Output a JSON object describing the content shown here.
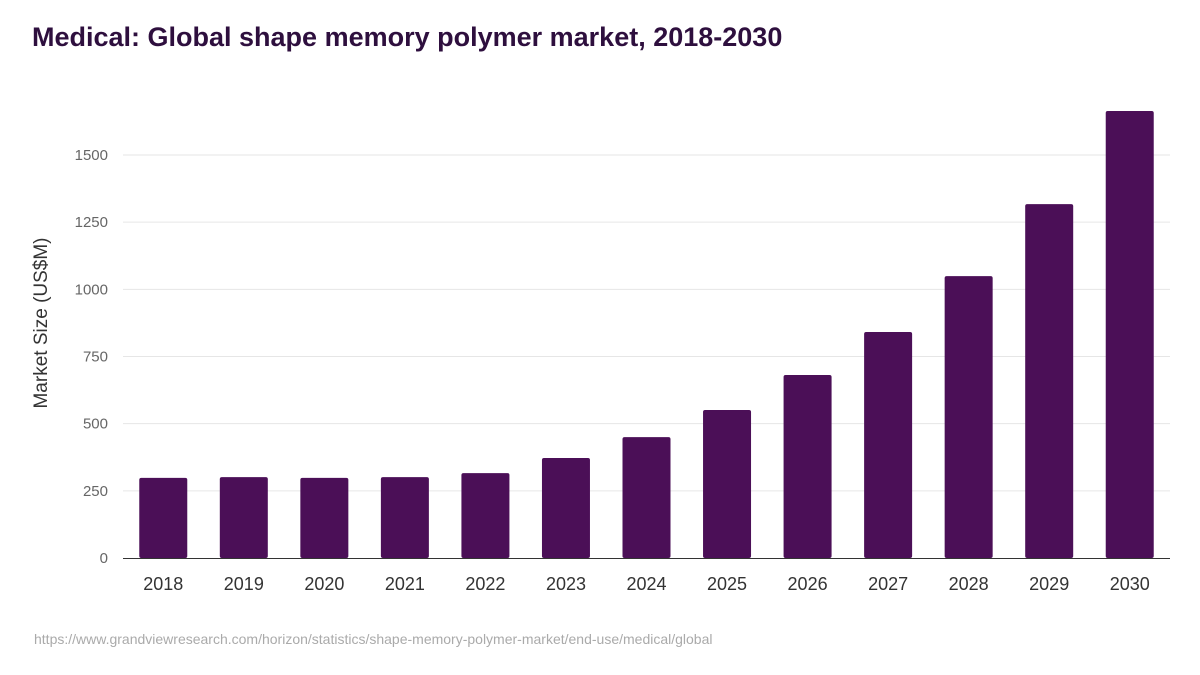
{
  "title": "Medical: Global shape memory polymer market, 2018-2030",
  "source": "https://www.grandviewresearch.com/horizon/statistics/shape-memory-polymer-market/end-use/medical/global",
  "colors": {
    "bar": "#4b0f57",
    "grid": "#e6e6e6"
  },
  "chart_data": {
    "type": "bar",
    "title": "Medical: Global shape memory polymer market, 2018-2030",
    "xlabel": "",
    "ylabel": "Market Size (US$M)",
    "categories": [
      "2018",
      "2019",
      "2020",
      "2021",
      "2022",
      "2023",
      "2024",
      "2025",
      "2026",
      "2027",
      "2028",
      "2029",
      "2030"
    ],
    "values": [
      298,
      301,
      298,
      301,
      316,
      372,
      450,
      551,
      681,
      841,
      1049,
      1317,
      1664
    ],
    "ylim": [
      0,
      1700
    ],
    "yticks": [
      0,
      250,
      500,
      750,
      1000,
      1250,
      1500
    ],
    "grid": true,
    "legend": "none"
  }
}
